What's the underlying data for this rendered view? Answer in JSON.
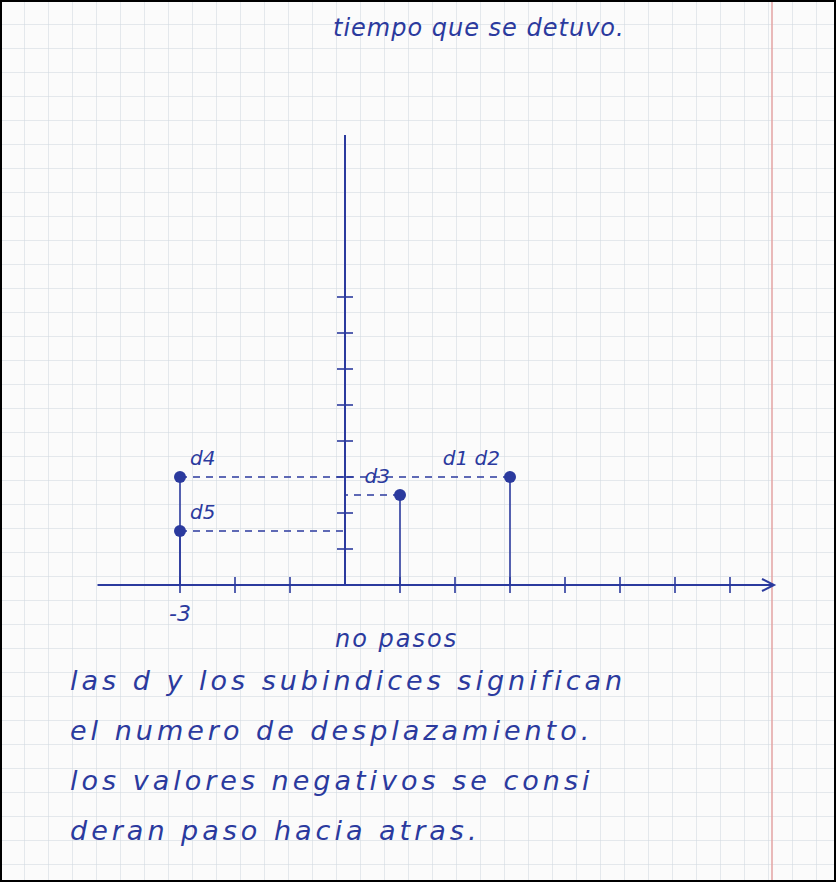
{
  "chart_data": {
    "type": "scatter",
    "y_label": "tiempo que se detuvo.",
    "x_label": "no pasos",
    "x": [
      3,
      1,
      -3,
      -3
    ],
    "values": [
      3,
      2.5,
      3,
      1.5
    ],
    "point_labels": [
      "d1 d2",
      "d3",
      "d4",
      "d5"
    ],
    "xlim": [
      -4.5,
      7.8
    ],
    "ylim": [
      0,
      12.5
    ],
    "xticks": [
      -3
    ],
    "tick_labels": "x",
    "xtick_marks": [
      -2,
      -1,
      1,
      2,
      3,
      4,
      5,
      6,
      7
    ],
    "ytick_marks": [
      1,
      2,
      3,
      4,
      5,
      6,
      7,
      8
    ],
    "color": "#2b3a9e",
    "marker": "circle",
    "note": [
      "las d y los subindices significan",
      "el numero de desplazamiento.",
      "los valores negativos se consi",
      "deran paso hacia atras."
    ]
  }
}
